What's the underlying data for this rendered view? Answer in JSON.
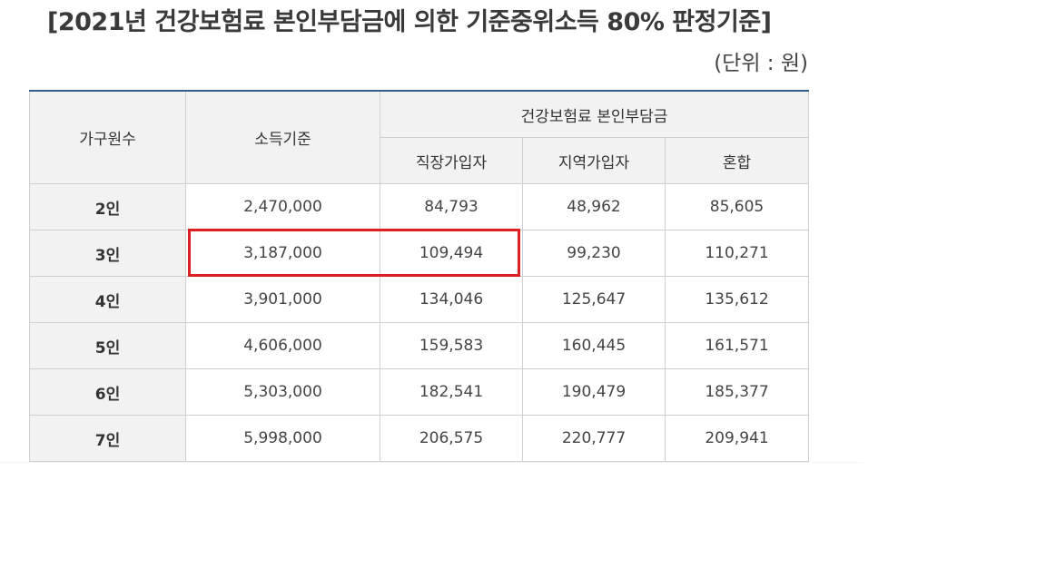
{
  "title": "[2021년 건강보험료 본인부담금에 의한 기준중위소득 80% 판정기준]",
  "unit": "(단위 : 원)",
  "headers": {
    "household": "가구원수",
    "income": "소득기준",
    "premium_group": "건강보험료 본인부담금",
    "employee": "직장가입자",
    "regional": "지역가입자",
    "mixed": "혼합"
  },
  "rows": [
    {
      "label": "2인",
      "income": "2,470,000",
      "employee": "84,793",
      "regional": "48,962",
      "mixed": "85,605"
    },
    {
      "label": "3인",
      "income": "3,187,000",
      "employee": "109,494",
      "regional": "99,230",
      "mixed": "110,271"
    },
    {
      "label": "4인",
      "income": "3,901,000",
      "employee": "134,046",
      "regional": "125,647",
      "mixed": "135,612"
    },
    {
      "label": "5인",
      "income": "4,606,000",
      "employee": "159,583",
      "regional": "160,445",
      "mixed": "161,571"
    },
    {
      "label": "6인",
      "income": "5,303,000",
      "employee": "182,541",
      "regional": "190,479",
      "mixed": "185,377"
    },
    {
      "label": "7인",
      "income": "5,998,000",
      "employee": "206,575",
      "regional": "220,777",
      "mixed": "209,941"
    }
  ],
  "colors": {
    "highlight": "#e02020",
    "header_bg": "#f2f2f2",
    "top_rule": "#2f5d8c"
  }
}
